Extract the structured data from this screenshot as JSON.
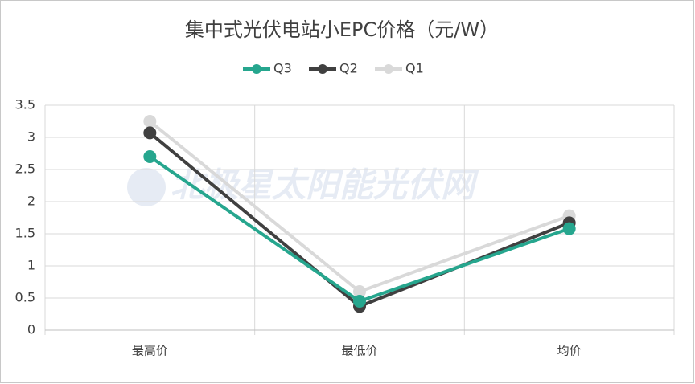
{
  "chart_data": {
    "type": "line",
    "title": "集中式光伏电站小EPC价格（元/W）",
    "watermark": "北极星太阳能光伏网",
    "categories": [
      "最高价",
      "最低价",
      "均价"
    ],
    "series": [
      {
        "name": "Q3",
        "color": "#26a68e",
        "values": [
          2.7,
          0.45,
          1.58
        ]
      },
      {
        "name": "Q2",
        "color": "#404040",
        "values": [
          3.07,
          0.37,
          1.67
        ]
      },
      {
        "name": "Q1",
        "color": "#d9d9d9",
        "values": [
          3.25,
          0.6,
          1.78
        ]
      }
    ],
    "ylim": [
      0,
      3.5
    ],
    "yticks": [
      0,
      0.5,
      1,
      1.5,
      2,
      2.5,
      3,
      3.5
    ],
    "grid": true,
    "legend": "top"
  }
}
